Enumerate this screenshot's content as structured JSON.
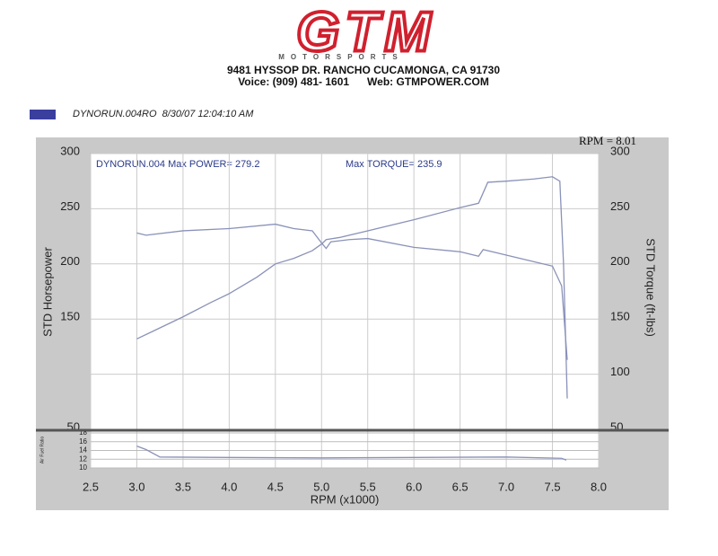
{
  "header": {
    "logo": "GTM",
    "subtitle": "MOTORSPORTS",
    "address": "9481 HYSSOP DR. RANCHO CUCAMONGA, CA 91730",
    "contact": "Voice: (909) 481- 1601      Web: GTMPOWER.COM"
  },
  "chart_data": [
    {
      "type": "line",
      "legend_entry": {
        "name": "DYNORUN.004RO  8/30/07 12:04:10 AM",
        "color": "#3a3f9e"
      },
      "corner_label": "RPM = 8.01",
      "annotations": [
        "DYNORUN.004  Max POWER= 279.2",
        "Max TORQUE= 235.9"
      ],
      "xlabel": "RPM (x1000)",
      "ylabel": "STD Horsepower",
      "y2label": "STD Torque (ft-lbs)",
      "xlim": [
        2.5,
        8.0
      ],
      "xticks": [
        2.5,
        {
          "value": 3,
          "label": "3.0"
        },
        3.5,
        {
          "value": 4,
          "label": "4.0"
        },
        4.5,
        {
          "value": 5,
          "label": "5.0"
        },
        5.5,
        {
          "value": 6,
          "label": "6.0"
        },
        6.5,
        {
          "value": 7,
          "label": "7.0"
        },
        7.5,
        {
          "value": 8,
          "label": "8.0"
        }
      ],
      "ylim": [
        50,
        300
      ],
      "yticks": [
        50,
        150,
        200,
        250,
        300
      ],
      "y2lim": [
        50,
        300
      ],
      "y2ticks": [
        50,
        100,
        150,
        200,
        250,
        300
      ],
      "grid": true,
      "series": [
        {
          "color": "#8a92b8",
          "x": [
            3.0,
            3.2,
            3.5,
            3.8,
            4.0,
            4.3,
            4.5,
            4.7,
            4.9,
            5.0,
            5.05,
            5.2,
            5.5,
            6.0,
            6.5,
            6.7,
            6.8,
            7.0,
            7.3,
            7.5,
            7.58,
            7.62,
            7.66
          ],
          "values": [
            132,
            140,
            152,
            165,
            173,
            188,
            200,
            205,
            212,
            218,
            222,
            224,
            230,
            240,
            251,
            255,
            274,
            275,
            277,
            279,
            275,
            200,
            78
          ]
        },
        {
          "color": "#8a92b8",
          "axis": "y2",
          "x": [
            3.0,
            3.1,
            3.5,
            4.0,
            4.5,
            4.7,
            4.9,
            5.0,
            5.05,
            5.1,
            5.3,
            5.5,
            6.0,
            6.5,
            6.7,
            6.75,
            7.0,
            7.3,
            7.5,
            7.6,
            7.66
          ],
          "values": [
            228,
            226,
            230,
            232,
            236,
            232,
            230,
            219,
            214,
            220,
            222,
            223,
            215,
            211,
            207,
            213,
            208,
            202,
            198,
            180,
            113
          ]
        }
      ]
    },
    {
      "type": "line",
      "ylabel": "Air Fuel Ratio",
      "xlim": [
        2.5,
        8.0
      ],
      "ylim": [
        10,
        18
      ],
      "yticks": [
        10,
        12,
        14,
        16,
        18
      ],
      "series": [
        {
          "color": "#8a92b8",
          "x": [
            3.0,
            3.1,
            3.25,
            4.0,
            5.0,
            6.0,
            7.0,
            7.6,
            7.65
          ],
          "values": [
            15,
            14.2,
            12.5,
            12.4,
            12.3,
            12.4,
            12.5,
            12.2,
            11.8
          ]
        }
      ]
    }
  ]
}
